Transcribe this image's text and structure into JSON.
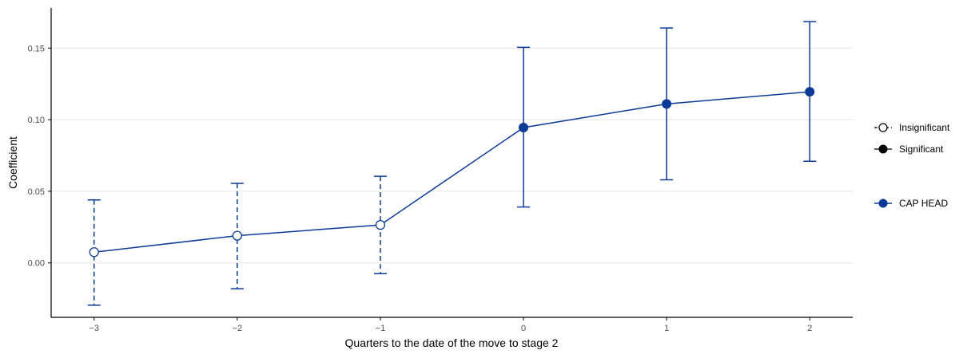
{
  "chart_data": {
    "type": "line",
    "title": "",
    "xlabel": "Quarters to the date of the move to stage 2",
    "ylabel": "Coefficient",
    "xlim": [
      -3.3,
      2.3
    ],
    "ylim": [
      -0.038,
      0.178
    ],
    "x_ticks": [
      -3,
      -2,
      -1,
      0,
      1,
      2
    ],
    "x_tick_labels": [
      "−3",
      "−2",
      "−1",
      "0",
      "1",
      "2"
    ],
    "y_ticks": [
      0.0,
      0.05,
      0.1,
      0.15
    ],
    "y_tick_labels": [
      "0.00",
      "0.05",
      "0.10",
      "0.15"
    ],
    "grid": "horizontal-major",
    "legend_position": "right",
    "colors": {
      "series": "#0a3a96",
      "grid": "#e3e3e3",
      "axis": "#000000",
      "tick_label": "#4d4d4d"
    },
    "series": [
      {
        "name": "CAP HEAD",
        "points": [
          {
            "x": -3,
            "y": 0.0075,
            "lower": -0.0295,
            "upper": 0.044,
            "significant": false
          },
          {
            "x": -2,
            "y": 0.019,
            "lower": -0.018,
            "upper": 0.0555,
            "significant": false
          },
          {
            "x": -1,
            "y": 0.0265,
            "lower": -0.0075,
            "upper": 0.0605,
            "significant": false
          },
          {
            "x": 0,
            "y": 0.0945,
            "lower": 0.039,
            "upper": 0.1505,
            "significant": true
          },
          {
            "x": 1,
            "y": 0.111,
            "lower": 0.058,
            "upper": 0.164,
            "significant": true
          },
          {
            "x": 2,
            "y": 0.1195,
            "lower": 0.071,
            "upper": 0.1685,
            "significant": true
          }
        ]
      }
    ],
    "legend": {
      "significance": [
        {
          "label": "Insignificant",
          "marker": "open-circle",
          "line": "dashed"
        },
        {
          "label": "Significant",
          "marker": "filled-circle",
          "line": "solid"
        }
      ],
      "series": [
        {
          "label": "CAP HEAD",
          "marker": "filled-circle",
          "color": "#0a3a96"
        }
      ]
    }
  }
}
